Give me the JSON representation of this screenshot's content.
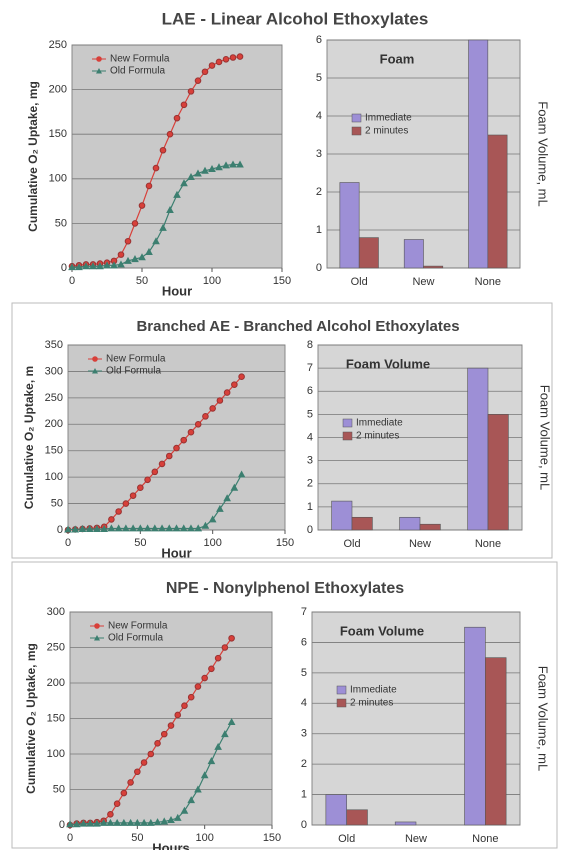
{
  "sections": [
    {
      "title": "LAE - Linear Alcohol Ethoxylates"
    },
    {
      "title": "Branched AE - Branched Alcohol Ethoxylates"
    },
    {
      "title": "NPE - Nonylphenol Ethoxylates"
    }
  ],
  "chart_data": [
    {
      "type": "line",
      "x_label": "Hour",
      "y_label": "Cumulative O₂ Uptake, mg",
      "xlim": [
        0,
        150
      ],
      "xticks": [
        0,
        50,
        100,
        150
      ],
      "ylim": [
        0,
        250
      ],
      "yticks": [
        0,
        50,
        100,
        150,
        200,
        250
      ],
      "grid": true,
      "legend": "upper left",
      "x": [
        0,
        5,
        10,
        15,
        20,
        25,
        30,
        35,
        40,
        45,
        50,
        55,
        60,
        65,
        70,
        75,
        80,
        85,
        90,
        95,
        100,
        105,
        110,
        115,
        120
      ],
      "series": [
        {
          "name": "New Formula",
          "color": "#d8403a",
          "marker": "circle",
          "values": [
            2,
            3,
            4,
            4,
            5,
            6,
            8,
            15,
            30,
            50,
            70,
            92,
            112,
            132,
            150,
            168,
            183,
            198,
            210,
            220,
            227,
            231,
            234,
            236,
            237
          ]
        },
        {
          "name": "Old Formula",
          "color": "#3c7f70",
          "marker": "triangle",
          "values": [
            1,
            1,
            2,
            2,
            2,
            3,
            3,
            4,
            8,
            10,
            12,
            18,
            30,
            45,
            65,
            82,
            95,
            102,
            106,
            109,
            111,
            113,
            115,
            116,
            116
          ]
        }
      ]
    },
    {
      "type": "bar",
      "title": "Foam",
      "y_label": "Foam Volume, mL",
      "categories": [
        "Old",
        "New",
        "None"
      ],
      "ylim": [
        0,
        6
      ],
      "yticks": [
        0,
        1,
        2,
        3,
        4,
        5,
        6
      ],
      "grid": true,
      "legend": "upper left",
      "series": [
        {
          "name": "Immediate",
          "color": "#9d8fd6",
          "values": [
            2.25,
            0.75,
            6
          ]
        },
        {
          "name": "2 minutes",
          "color": "#a85656",
          "values": [
            0.8,
            0.05,
            3.5
          ]
        }
      ]
    },
    {
      "type": "line",
      "x_label": "Hour",
      "y_label": "Cumulative O₂ Uptake, m",
      "xlim": [
        0,
        150
      ],
      "xticks": [
        0,
        50,
        100,
        150
      ],
      "ylim": [
        0,
        350
      ],
      "yticks": [
        0,
        50,
        100,
        150,
        200,
        250,
        300,
        350
      ],
      "grid": true,
      "legend": "upper left",
      "x": [
        0,
        5,
        10,
        15,
        20,
        25,
        30,
        35,
        40,
        45,
        50,
        55,
        60,
        65,
        70,
        75,
        80,
        85,
        90,
        95,
        100,
        105,
        110,
        115,
        120
      ],
      "series": [
        {
          "name": "New Formula",
          "color": "#d8403a",
          "marker": "circle",
          "values": [
            0,
            1,
            2,
            3,
            4,
            6,
            20,
            35,
            50,
            65,
            80,
            95,
            110,
            125,
            140,
            155,
            170,
            185,
            200,
            215,
            230,
            245,
            260,
            275,
            290
          ]
        },
        {
          "name": "Old Formula",
          "color": "#3c7f70",
          "marker": "triangle",
          "values": [
            1,
            1,
            2,
            2,
            2,
            2,
            3,
            3,
            3,
            3,
            3,
            3,
            3,
            3,
            3,
            3,
            3,
            3,
            3,
            8,
            20,
            40,
            60,
            80,
            105
          ]
        }
      ]
    },
    {
      "type": "bar",
      "title": "Foam Volume",
      "y_label": "Foam Volume, mL",
      "categories": [
        "Old",
        "New",
        "None"
      ],
      "ylim": [
        0,
        8
      ],
      "yticks": [
        0,
        1,
        2,
        3,
        4,
        5,
        6,
        7,
        8
      ],
      "grid": true,
      "legend": "upper left",
      "series": [
        {
          "name": "Immediate",
          "color": "#9d8fd6",
          "values": [
            1.25,
            0.55,
            7
          ]
        },
        {
          "name": "2 minutes",
          "color": "#a85656",
          "values": [
            0.55,
            0.25,
            5
          ]
        }
      ]
    },
    {
      "type": "line",
      "x_label": "Hours",
      "y_label": "Cumulative O₂ Uptake, mg",
      "xlim": [
        0,
        150
      ],
      "xticks": [
        0,
        50,
        100,
        150
      ],
      "ylim": [
        0,
        300
      ],
      "yticks": [
        0,
        50,
        100,
        150,
        200,
        250,
        300
      ],
      "grid": true,
      "legend": "upper left",
      "x": [
        0,
        5,
        10,
        15,
        20,
        25,
        30,
        35,
        40,
        45,
        50,
        55,
        60,
        65,
        70,
        75,
        80,
        85,
        90,
        95,
        100,
        105,
        110,
        115,
        120
      ],
      "series": [
        {
          "name": "New Formula",
          "color": "#d8403a",
          "marker": "circle",
          "values": [
            0,
            2,
            3,
            3,
            4,
            6,
            15,
            30,
            45,
            60,
            75,
            88,
            100,
            115,
            128,
            140,
            155,
            168,
            180,
            195,
            207,
            220,
            235,
            250,
            263
          ]
        },
        {
          "name": "Old Formula",
          "color": "#3c7f70",
          "marker": "triangle",
          "values": [
            1,
            1,
            2,
            2,
            2,
            3,
            3,
            3,
            3,
            3,
            3,
            3,
            3,
            4,
            5,
            7,
            10,
            20,
            35,
            50,
            70,
            90,
            110,
            128,
            145
          ]
        }
      ]
    },
    {
      "type": "bar",
      "title": "Foam Volume",
      "y_label": "Foam Volume, mL",
      "categories": [
        "Old",
        "New",
        "None"
      ],
      "ylim": [
        0,
        7
      ],
      "yticks": [
        0,
        1,
        2,
        3,
        4,
        5,
        6,
        7
      ],
      "grid": true,
      "legend": "upper left",
      "series": [
        {
          "name": "Immediate",
          "color": "#9d8fd6",
          "values": [
            1,
            0.1,
            6.5
          ]
        },
        {
          "name": "2 minutes",
          "color": "#a85656",
          "values": [
            0.5,
            0,
            5.5
          ]
        }
      ]
    }
  ]
}
